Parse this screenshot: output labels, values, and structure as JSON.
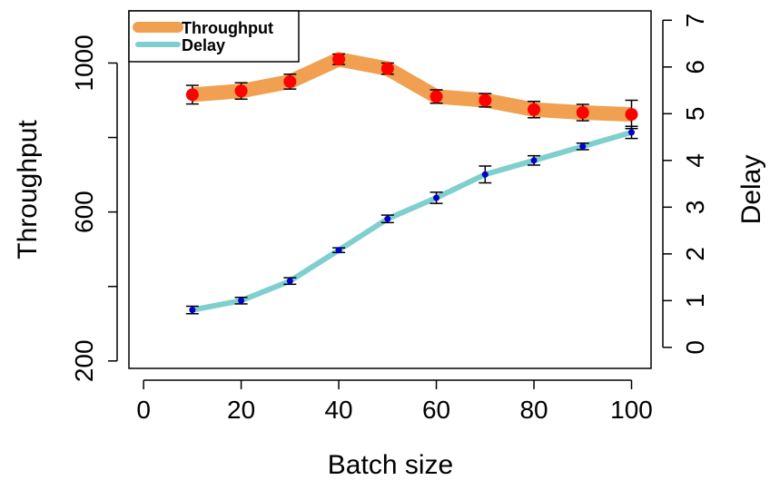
{
  "chart_data": {
    "type": "line",
    "xlabel": "Batch size",
    "ylabel_left": "Throughput",
    "ylabel_right": "Delay",
    "xlim": [
      -3,
      104
    ],
    "ylim_left": [
      180,
      1140
    ],
    "ylim_right": [
      -0.45,
      7.2
    ],
    "x_ticks": [
      0,
      20,
      40,
      60,
      80,
      100
    ],
    "y_left_ticks": [
      200,
      600,
      1000
    ],
    "y_left_minor_ticks": [
      400,
      800
    ],
    "y_right_ticks": [
      0,
      1,
      2,
      3,
      4,
      5,
      6,
      7
    ],
    "legend_position": "top-left",
    "grid": false,
    "x": [
      10,
      20,
      30,
      40,
      50,
      60,
      70,
      80,
      90,
      100
    ],
    "series": [
      {
        "name": "Throughput",
        "axis": "left",
        "line_color": "#f0a050",
        "point_color": "#ff0000",
        "values": [
          915,
          925,
          950,
          1010,
          985,
          910,
          900,
          875,
          867,
          862
        ],
        "errors": [
          25,
          22,
          20,
          14,
          15,
          18,
          18,
          22,
          22,
          38
        ]
      },
      {
        "name": "Delay",
        "axis": "right",
        "line_color": "#7fcfcf",
        "point_color": "#0000cc",
        "values": [
          0.8,
          1.0,
          1.42,
          2.08,
          2.75,
          3.2,
          3.7,
          4.0,
          4.3,
          4.6
        ],
        "errors": [
          0.08,
          0.07,
          0.07,
          0.05,
          0.08,
          0.12,
          0.18,
          0.1,
          0.07,
          0.13
        ]
      }
    ]
  }
}
